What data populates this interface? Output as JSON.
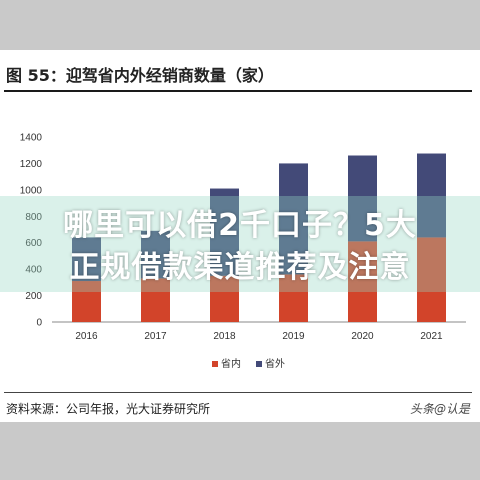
{
  "figure": {
    "title": "图 55：迎驾省内外经销商数量（家）",
    "source": "资料来源：公司年报，光大证券研究所",
    "watermark": "头条@认是"
  },
  "overlay": {
    "line1": "哪里可以借2千口子？5大",
    "line2": "正规借款渠道推荐及注意"
  },
  "colors": {
    "domestic": "#d2442a",
    "foreign": "#434a78",
    "page_bg": "#c9c9c9",
    "overlay": "#96d7c3"
  },
  "chart_data": {
    "type": "bar",
    "stacked": true,
    "categories": [
      "2016",
      "2017",
      "2018",
      "2019",
      "2020",
      "2021"
    ],
    "series": [
      {
        "name": "省内",
        "values": [
          310,
          330,
          350,
          360,
          610,
          640
        ]
      },
      {
        "name": "省外",
        "values": [
          330,
          360,
          660,
          840,
          650,
          635
        ]
      }
    ],
    "title": "",
    "xlabel": "",
    "ylabel": "",
    "ylim": [
      0,
      1400
    ],
    "yticks": [
      0,
      200,
      400,
      600,
      800,
      1000,
      1200,
      1400
    ],
    "grid": false,
    "legend": "bottom-center"
  }
}
